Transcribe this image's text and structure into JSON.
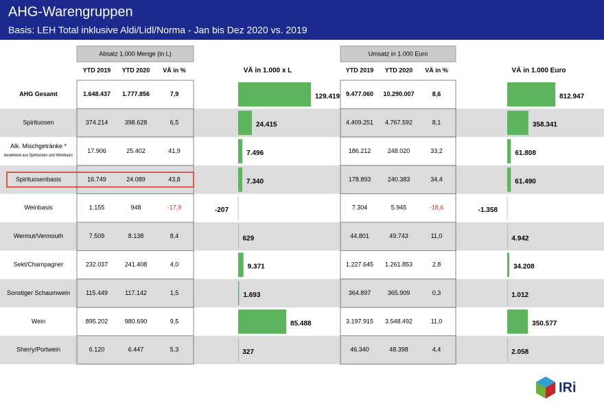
{
  "header": {
    "title": "AHG-Warengruppen",
    "subtitle": "Basis: LEH Total inklusive Aldi/Lidl/Norma - Jan bis Dez  2020 vs. 2019"
  },
  "volume_table": {
    "group": "Absatz 1.000 Menge (in L)",
    "columns": [
      "YTD 2019",
      "YTD 2020",
      "VÄ in %"
    ]
  },
  "value_table": {
    "group": "Umsatz in 1.000 Euro",
    "columns": [
      "YTD 2019",
      "YTD 2020",
      "VÄ in %"
    ]
  },
  "table": {
    "rows": [
      {
        "label": "AHG Gesamt",
        "volume": [
          "1.648.437",
          "1.777.856",
          "7,9"
        ],
        "value": [
          "9.477.060",
          "10.290.007",
          "8,6"
        ]
      },
      {
        "label": "Spirituosen",
        "volume": [
          "374.214",
          "398.628",
          "6,5"
        ],
        "value": [
          "4.409.251",
          "4.767.592",
          "8,1"
        ]
      },
      {
        "label": "Alk. Mischgetränke *",
        "note": "bestehend aus Spirituosen und Weinbasis",
        "volume": [
          "17.906",
          "25.402",
          "41,9"
        ],
        "value": [
          "186.212",
          "248.020",
          "33,2"
        ]
      },
      {
        "label": "Spirituosenbasis",
        "volume": [
          "16.749",
          "24.089",
          "43,8"
        ],
        "value": [
          "178.893",
          "240.383",
          "34,4"
        ]
      },
      {
        "label": "Weinbasis",
        "volume": [
          "1.155",
          "948",
          "-17,9"
        ],
        "value": [
          "7.304",
          "5.945",
          "-18,6"
        ]
      },
      {
        "label": "Wermut/Vermouth",
        "volume": [
          "7.509",
          "8.138",
          "8,4"
        ],
        "value": [
          "44.801",
          "49.743",
          "11,0"
        ]
      },
      {
        "label": "Sekt/Champagner",
        "volume": [
          "232.037",
          "241.408",
          "4,0"
        ],
        "value": [
          "1.227.645",
          "1.261.853",
          "2,8"
        ]
      },
      {
        "label": "Sonstiger Schaumwein",
        "volume": [
          "115.449",
          "117.142",
          "1,5"
        ],
        "value": [
          "364.897",
          "365.909",
          "0,3"
        ]
      },
      {
        "label": "Wein",
        "volume": [
          "895.202",
          "980.690",
          "9,5"
        ],
        "value": [
          "3.197.915",
          "3.548.492",
          "11,0"
        ]
      },
      {
        "label": "Sherry/Portwein",
        "volume": [
          "6.120",
          "6.447",
          "5,3"
        ],
        "value": [
          "46.340",
          "48.398",
          "4,4"
        ]
      }
    ]
  },
  "chart_data": [
    {
      "type": "bar",
      "title": "VÄ in 1.000 x L",
      "color": "#5cb55c",
      "values": [
        129419,
        24415,
        7496,
        7340,
        -207,
        629,
        9371,
        1693,
        85488,
        327
      ],
      "value_labels": [
        "129.419",
        "24.415",
        "7.496",
        "7.340",
        "-207",
        "629",
        "9.371",
        "1.693",
        "85.488",
        "327"
      ]
    },
    {
      "type": "bar",
      "title": "VÄ in 1.000 Euro",
      "color": "#5cb55c",
      "values": [
        812947,
        358341,
        61808,
        61490,
        -1358,
        4942,
        34208,
        1012,
        350577,
        2058
      ],
      "value_labels": [
        "812.947",
        "358.341",
        "61.808",
        "61.490",
        "-1.358",
        "4.942",
        "34.208",
        "1.012",
        "350.577",
        "2.058"
      ]
    }
  ],
  "logo": "IRi"
}
